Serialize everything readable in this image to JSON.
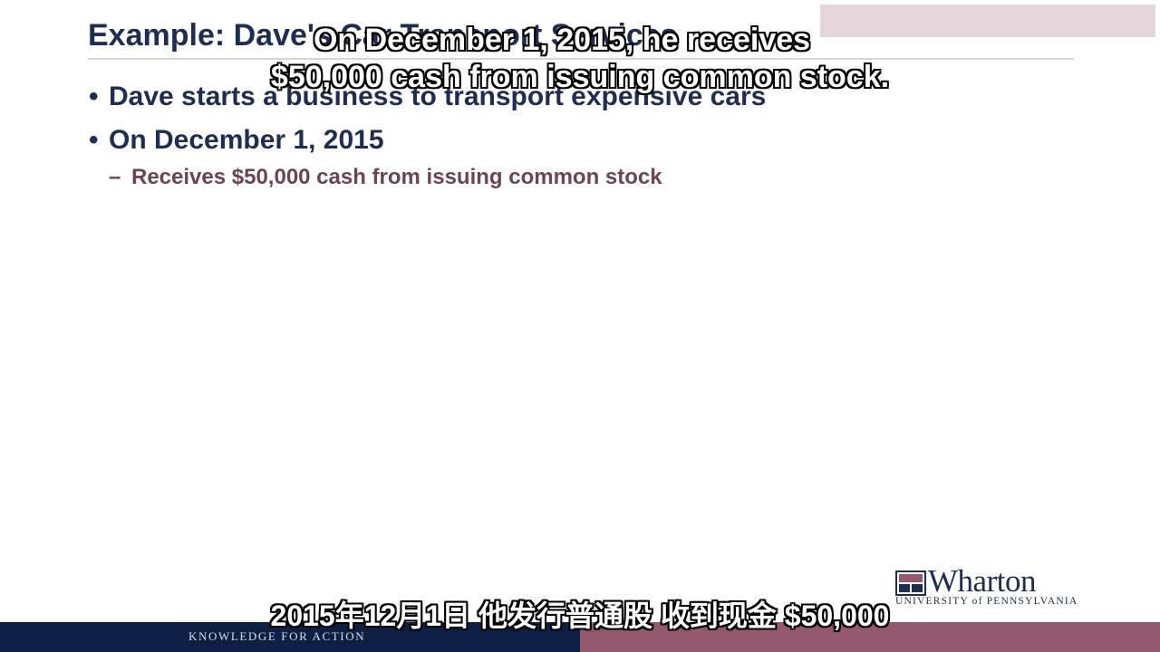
{
  "slide": {
    "title": "Example: Dave's Car Transport Services",
    "bullets": [
      "Dave starts a business to transport expensive cars",
      "On December 1, 2015"
    ],
    "sub_bullets": [
      "Receives $50,000 cash from issuing common stock"
    ]
  },
  "subtitles": {
    "english_line1": "On December 1, 2015, he receives",
    "english_line2": "$50,000 cash from issuing common stock.",
    "chinese": "2015年12月1日 他发行普通股 收到现金 $50,000"
  },
  "logo": {
    "wordmark": "Wharton",
    "university": "UNIVERSITY of PENNSYLVANIA"
  },
  "footer": {
    "tagline": "KNOWLEDGE FOR ACTION"
  },
  "colors": {
    "title": "#1f2d52",
    "sub_bullet": "#6b4456",
    "footer_left": "#0d1f44",
    "footer_right": "#94596f"
  }
}
